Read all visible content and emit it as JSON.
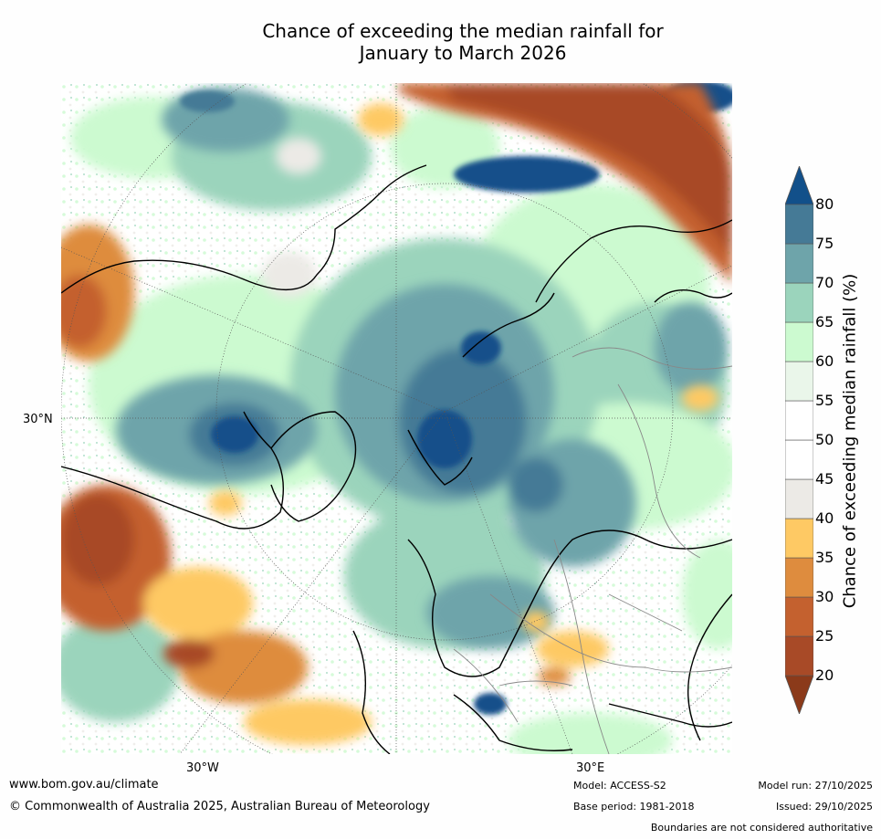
{
  "title_line1": "Chance of exceeding the median rainfall for",
  "title_line2": "January to March 2026",
  "graticule_labels": {
    "lat_30n": "30°N",
    "lon_30w": "30°W",
    "lon_30e": "30°E"
  },
  "colorbar": {
    "label": "Chance of exceeding median rainfall (%)",
    "ticks": [
      "20",
      "25",
      "30",
      "35",
      "40",
      "45",
      "50",
      "55",
      "60",
      "65",
      "70",
      "75",
      "80"
    ],
    "bins": [
      {
        "range": "<20",
        "color": "#8b3a1a"
      },
      {
        "range": "20-25",
        "color": "#a84a27"
      },
      {
        "range": "25-30",
        "color": "#c4612f"
      },
      {
        "range": "30-35",
        "color": "#de8c3e"
      },
      {
        "range": "35-40",
        "color": "#fec964"
      },
      {
        "range": "40-45",
        "color": "#eceae6"
      },
      {
        "range": "45-50",
        "color": "#ffffff"
      },
      {
        "range": "50-55",
        "color": "#ffffff"
      },
      {
        "range": "55-60",
        "color": "#eaf6ea"
      },
      {
        "range": "60-65",
        "color": "#ccfad0"
      },
      {
        "range": "65-70",
        "color": "#9bd4bc"
      },
      {
        "range": "70-75",
        "color": "#6ea4aa"
      },
      {
        "range": "75-80",
        "color": "#457a96"
      },
      {
        "range": ">80",
        "color": "#12508a"
      }
    ]
  },
  "footer": {
    "website": "www.bom.gov.au/climate",
    "copyright": "© Commonwealth of Australia 2025, Australian Bureau of Meteorology",
    "model": "Model: ACCESS-S2",
    "base_period": "Base period: 1981-2018",
    "model_run": "Model run: 27/10/2025",
    "issued": "Issued: 29/10/2025",
    "disclaimer": "Boundaries are not considered authoritative"
  }
}
